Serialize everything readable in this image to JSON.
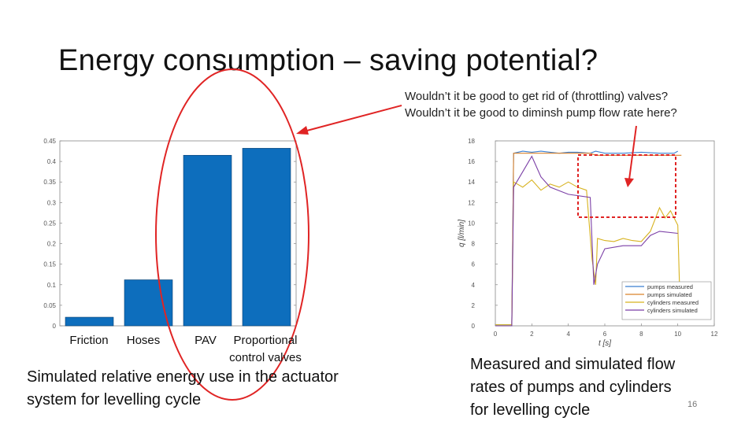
{
  "slide": {
    "title": "Energy consumption – saving potential?",
    "question_1": "Wouldn’t it be good to get rid of (throttling) valves?",
    "question_2": "Wouldn’t it be good to diminsh pump flow rate here?",
    "caption_left_1": "Simulated relative energy use in the actuator",
    "caption_left_2": "system for levelling cycle",
    "caption_right_1": "Measured and simulated flow",
    "caption_right_2": "rates of pumps and cylinders",
    "caption_right_3": "for levelling cycle",
    "slide_number": "16"
  },
  "colors": {
    "bar": "#0d6ebd",
    "annotation_red": "#e02424",
    "pumps_measured": "#3b7fd0",
    "pumps_simulated": "#d9822b",
    "cylinders_measured": "#d7b21e",
    "cylinders_simulated": "#7b3fa6"
  },
  "chart_data": [
    {
      "type": "bar",
      "categories": [
        "Friction",
        "Hoses",
        "PAV",
        "Proportional control valves"
      ],
      "category_lines": [
        [
          "Friction"
        ],
        [
          "Hoses"
        ],
        [
          "PAV"
        ],
        [
          "Proportional",
          "control valves"
        ]
      ],
      "values": [
        0.021,
        0.112,
        0.415,
        0.432
      ],
      "ylim": [
        0,
        0.45
      ],
      "yticks": [
        0,
        0.05,
        0.1,
        0.15,
        0.2,
        0.25,
        0.3,
        0.35,
        0.4,
        0.45
      ],
      "ytick_labels": [
        "0",
        "0.05",
        "0.1",
        "0.15",
        "0.2",
        "0.25",
        "0.3",
        "0.35",
        "0.4",
        "0.45"
      ],
      "grid": false
    },
    {
      "type": "line",
      "xlabel": "t [s]",
      "ylabel": "q [l/min]",
      "xlim": [
        0,
        12
      ],
      "ylim": [
        0,
        18
      ],
      "xticks": [
        0,
        2,
        4,
        6,
        8,
        10,
        12
      ],
      "yticks": [
        0,
        2,
        4,
        6,
        8,
        10,
        12,
        14,
        16,
        18
      ],
      "legend_position": "bottom-right",
      "series": [
        {
          "name": "pumps measured",
          "points": [
            [
              0,
              0.1
            ],
            [
              0.9,
              0.1
            ],
            [
              1.0,
              16.8
            ],
            [
              1.5,
              17.0
            ],
            [
              2,
              16.9
            ],
            [
              2.5,
              17.0
            ],
            [
              3,
              16.9
            ],
            [
              3.5,
              16.8
            ],
            [
              4,
              16.9
            ],
            [
              4.5,
              16.9
            ],
            [
              5.2,
              16.8
            ],
            [
              5.5,
              17.0
            ],
            [
              6,
              16.8
            ],
            [
              7,
              16.8
            ],
            [
              8,
              16.9
            ],
            [
              9,
              16.8
            ],
            [
              9.8,
              16.8
            ],
            [
              10,
              17.0
            ]
          ]
        },
        {
          "name": "pumps simulated",
          "points": [
            [
              0,
              0
            ],
            [
              0.9,
              0
            ],
            [
              1.0,
              16.8
            ],
            [
              5.2,
              16.8
            ],
            [
              5.5,
              16.6
            ],
            [
              10,
              16.6
            ],
            [
              10.2,
              16.6
            ]
          ]
        },
        {
          "name": "cylinders measured",
          "points": [
            [
              0,
              0.1
            ],
            [
              0.9,
              0.1
            ],
            [
              1.0,
              14.0
            ],
            [
              1.5,
              13.5
            ],
            [
              2,
              14.2
            ],
            [
              2.5,
              13.2
            ],
            [
              3,
              13.8
            ],
            [
              3.5,
              13.5
            ],
            [
              4,
              14.0
            ],
            [
              4.5,
              13.5
            ],
            [
              5.0,
              13.2
            ],
            [
              5.3,
              6.5
            ],
            [
              5.5,
              4.0
            ],
            [
              5.6,
              8.5
            ],
            [
              6,
              8.3
            ],
            [
              6.5,
              8.2
            ],
            [
              7,
              8.5
            ],
            [
              7.5,
              8.3
            ],
            [
              8,
              8.2
            ],
            [
              8.5,
              9.2
            ],
            [
              9,
              11.5
            ],
            [
              9.3,
              10.5
            ],
            [
              9.6,
              11.2
            ],
            [
              10,
              9.8
            ],
            [
              10.1,
              3.5
            ]
          ]
        },
        {
          "name": "cylinders simulated",
          "points": [
            [
              0,
              0
            ],
            [
              0.9,
              0
            ],
            [
              1.0,
              13.5
            ],
            [
              1.5,
              15.0
            ],
            [
              2,
              16.5
            ],
            [
              2.5,
              14.5
            ],
            [
              3,
              13.5
            ],
            [
              4,
              12.8
            ],
            [
              5.2,
              12.5
            ],
            [
              5.4,
              4.0
            ],
            [
              5.6,
              6.0
            ],
            [
              6,
              7.5
            ],
            [
              7,
              7.8
            ],
            [
              8,
              7.8
            ],
            [
              8.5,
              8.8
            ],
            [
              9,
              9.2
            ],
            [
              10,
              9.0
            ]
          ]
        }
      ]
    }
  ]
}
